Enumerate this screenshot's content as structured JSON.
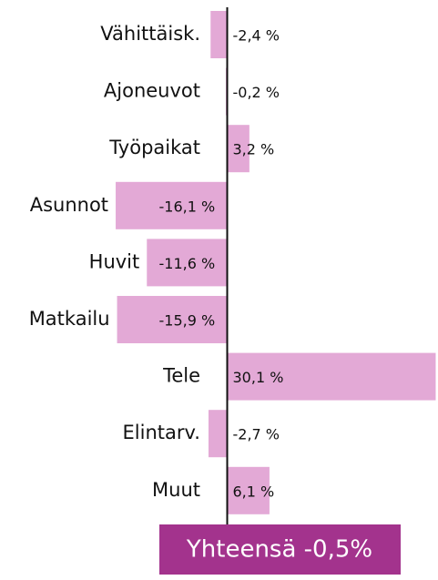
{
  "chart_data": {
    "type": "barh",
    "categories": [
      "Vähittäisk.",
      "Ajoneuvot",
      "Työpaikat",
      "Asunnot",
      "Huvit",
      "Matkailu",
      "Tele",
      "Elintarv.",
      "Muut"
    ],
    "values": [
      -2.4,
      -0.2,
      3.2,
      -16.1,
      -11.6,
      -15.9,
      30.1,
      -2.7,
      6.1
    ],
    "value_labels": [
      "-2,4 %",
      "-0,2 %",
      "3,2 %",
      "-16,1 %",
      "-11,6 %",
      "-15,9 %",
      "30,1 %",
      "-2,7 %",
      "6,1 %"
    ],
    "color": "#e3a9d6",
    "xlim": [
      -16.5,
      30.3
    ],
    "annotation": "Yhteensä -0,5%",
    "annotation_color": "#a3338d"
  }
}
